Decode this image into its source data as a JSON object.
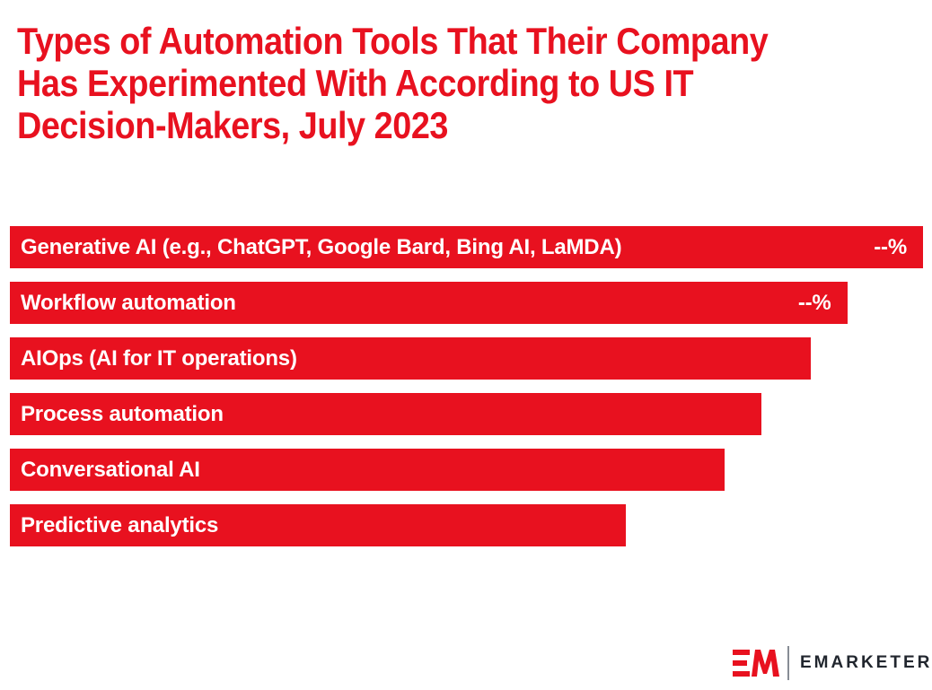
{
  "page": {
    "background": "#ffffff"
  },
  "chart_data": {
    "type": "bar",
    "orientation": "horizontal",
    "title": "Types of Automation Tools That Their Company Has Experimented With According to US IT Decision-Makers, July 2023",
    "title_lines": [
      "Types of Automation Tools That Their Company",
      "Has Experimented With According to US IT",
      "Decision-Makers, July 2023"
    ],
    "title_color": "#e8111f",
    "bar_color": "#e8111f",
    "bar_label_color": "#ffffff",
    "categories": [
      "Generative AI (e.g., ChatGPT, Google Bard, Bing AI, LaMDA)",
      "Workflow automation",
      "AIOps (AI for IT operations)",
      "Process automation",
      "Conversational AI",
      "Predictive analytics"
    ],
    "display_values": [
      "--%",
      "--%",
      "",
      "",
      "",
      ""
    ],
    "bar_length_pct": [
      100,
      91.7,
      87.7,
      82.3,
      78.3,
      67.5
    ],
    "xlabel": "",
    "ylabel": "",
    "legend": "none",
    "gridlines": false,
    "axes_visible": false
  },
  "branding": {
    "monogram": "EM",
    "wordmark": "EMARKETER",
    "monogram_color": "#e8111f",
    "wordmark_color": "#21262e",
    "divider_color": "#878d95"
  }
}
